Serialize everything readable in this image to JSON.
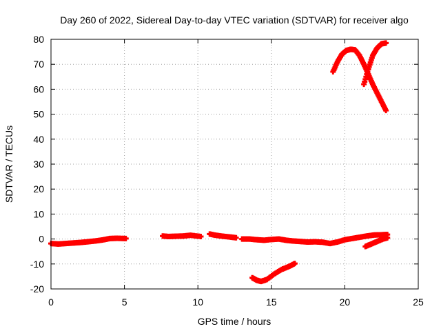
{
  "chart_data": {
    "type": "scatter",
    "title": "Day 260 of 2022, Sidereal Day-to-day VTEC variation (SDTVAR) for receiver algo",
    "xlabel": "GPS time / hours",
    "ylabel": "SDTVAR / TECUs",
    "xlim": [
      0,
      25
    ],
    "ylim": [
      -20,
      80
    ],
    "xticks": [
      0,
      5,
      10,
      15,
      20,
      25
    ],
    "yticks": [
      -20,
      -10,
      0,
      10,
      20,
      30,
      40,
      50,
      60,
      70,
      80
    ],
    "grid": true,
    "legend": "none",
    "colors": {
      "series": "#ff0000",
      "grid": "#a0a0a0",
      "axes": "#000000"
    },
    "series": [
      {
        "x": [
          0.0,
          0.5,
          1.0,
          1.5,
          2.0,
          2.5,
          3.0,
          3.5,
          4.0,
          4.5,
          5.1
        ],
        "y": [
          -1.8,
          -2.0,
          -1.8,
          -1.6,
          -1.4,
          -1.1,
          -0.8,
          -0.4,
          0.2,
          0.3,
          0.2
        ]
      },
      {
        "x": [
          7.6,
          8.0,
          8.5,
          9.0,
          9.5,
          10.2
        ],
        "y": [
          1.2,
          1.0,
          1.1,
          1.2,
          1.5,
          1.0
        ]
      },
      {
        "x": [
          10.8,
          11.2,
          11.7,
          12.2,
          12.6
        ],
        "y": [
          2.0,
          1.5,
          1.1,
          0.8,
          0.5
        ]
      },
      {
        "x": [
          13.0,
          13.5,
          14.0,
          14.5,
          15.0,
          15.5,
          16.0,
          16.5,
          17.0,
          17.5,
          18.0,
          18.5,
          19.0,
          19.5,
          20.0,
          20.5,
          21.0,
          21.5,
          22.0,
          22.5,
          22.9
        ],
        "y": [
          0.0,
          0.0,
          -0.3,
          -0.5,
          -0.2,
          0.0,
          -0.5,
          -0.8,
          -1.0,
          -1.2,
          -1.1,
          -1.3,
          -1.8,
          -1.2,
          -0.3,
          0.2,
          0.7,
          1.2,
          1.6,
          1.7,
          1.8
        ]
      },
      {
        "x": [
          13.7,
          14.0,
          14.3,
          14.7,
          15.2,
          15.7,
          16.2,
          16.6
        ],
        "y": [
          -15.5,
          -16.5,
          -17.0,
          -16.2,
          -14.0,
          -12.2,
          -11.0,
          -9.8
        ]
      },
      {
        "x": [
          21.4,
          21.8,
          22.2,
          22.6,
          22.9
        ],
        "y": [
          -3.0,
          -2.0,
          -1.0,
          0.0,
          0.5
        ]
      },
      {
        "x": [
          19.2,
          19.5,
          19.8,
          20.1,
          20.4,
          20.7,
          21.0,
          21.3,
          21.6,
          21.9,
          22.2,
          22.5,
          22.8
        ],
        "y": [
          67.0,
          71.0,
          74.0,
          75.5,
          76.0,
          75.8,
          73.5,
          70.0,
          66.0,
          62.0,
          58.5,
          55.0,
          51.5
        ]
      },
      {
        "x": [
          21.3,
          21.6,
          21.9,
          22.2,
          22.5,
          22.8
        ],
        "y": [
          62.0,
          68.0,
          73.5,
          76.5,
          78.2,
          78.5
        ]
      }
    ]
  }
}
